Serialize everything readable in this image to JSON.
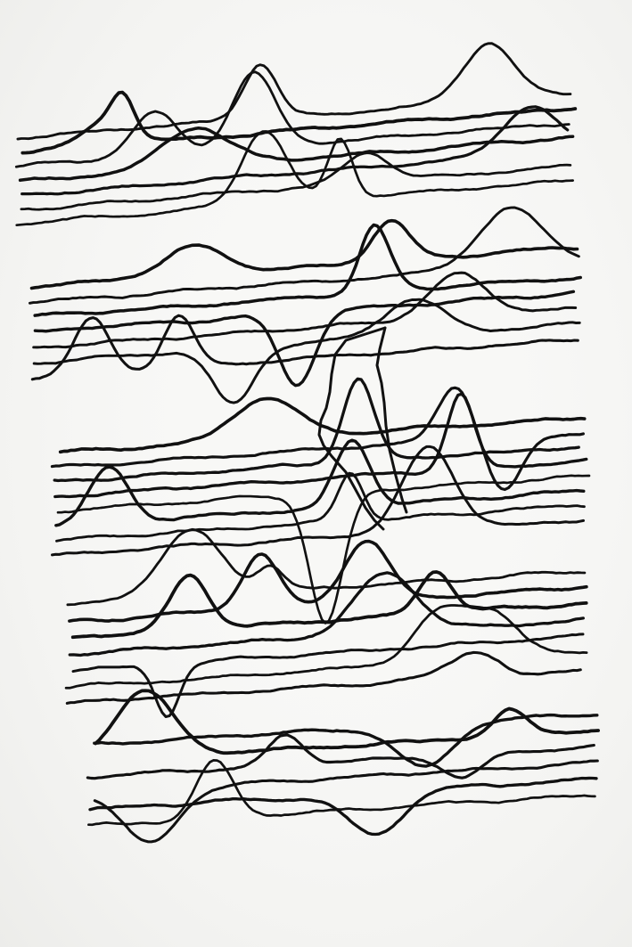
{
  "artwork": {
    "ink_color": "#111111",
    "paper_color": "#f8f8f6",
    "bands": [
      {
        "lines": 7,
        "peaks": 8
      },
      {
        "lines": 7,
        "peaks": 7
      },
      {
        "lines": 8,
        "peaks": 7
      },
      {
        "lines": 7,
        "peaks": 6
      },
      {
        "lines": 6,
        "peaks": 6
      }
    ]
  }
}
